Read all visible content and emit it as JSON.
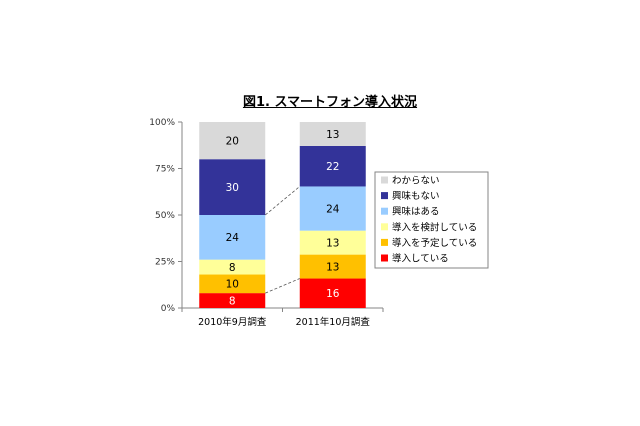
{
  "chart_data": {
    "type": "bar",
    "stacked": true,
    "percent": true,
    "title": "図1. スマートフォン導入状況",
    "categories": [
      "2010年9月調査",
      "2011年10月調査"
    ],
    "ylim": [
      0,
      100
    ],
    "yticks": [
      {
        "value": 0,
        "label": "0%"
      },
      {
        "value": 25,
        "label": "25%"
      },
      {
        "value": 50,
        "label": "50%"
      },
      {
        "value": 75,
        "label": "75%"
      },
      {
        "value": 100,
        "label": "100%"
      }
    ],
    "grid": false,
    "legend": "right",
    "series": [
      {
        "name": "導入している",
        "values": [
          8,
          16
        ],
        "color": "#ff0000",
        "label_color": "#ffffff",
        "series_line": true
      },
      {
        "name": "導入を予定している",
        "values": [
          10,
          13
        ],
        "color": "#ffc000",
        "label_color": "#000000"
      },
      {
        "name": "導入を検討している",
        "values": [
          8,
          13
        ],
        "color": "#ffff99",
        "label_color": "#000000"
      },
      {
        "name": "興味はある",
        "values": [
          24,
          24
        ],
        "color": "#99ccff",
        "label_color": "#000000",
        "series_line": true
      },
      {
        "name": "興味もない",
        "values": [
          30,
          22
        ],
        "color": "#333399",
        "label_color": "#ffffff"
      },
      {
        "name": "わからない",
        "values": [
          20,
          13
        ],
        "color": "#d9d9d9",
        "label_color": "#000000"
      }
    ]
  }
}
